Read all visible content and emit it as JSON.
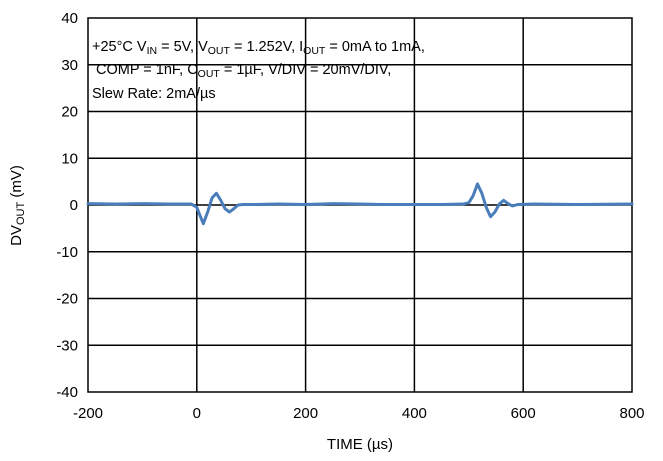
{
  "chart_data": {
    "type": "line",
    "title": "",
    "xlabel": "TIME (µs)",
    "ylabel": {
      "base": "DV",
      "sub": "OUT",
      "unit": " (mV)"
    },
    "xlim": [
      -200,
      800
    ],
    "ylim": [
      -40,
      40
    ],
    "x_ticks": [
      -200,
      0,
      200,
      400,
      600,
      800
    ],
    "y_ticks": [
      -40,
      -30,
      -20,
      -10,
      0,
      10,
      20,
      30,
      40
    ],
    "grid": true,
    "legend": "none",
    "annotation": {
      "line1": {
        "temp": "+25°C V",
        "vin_sub": "IN",
        "vin_val": " = 5V, V",
        "vout_sub": "OUT",
        "vout_val": " = 1.252V, I",
        "iout_sub": "OUT",
        "iout_val": " = 0mA to 1mA,"
      },
      "line2": {
        "comp": "COMP = 1nF, C",
        "cout_sub": "OUT",
        "cout_val": " = 1µF, V/DIV = 20mV/DIV,"
      },
      "line3": "Slew Rate: 2mA/µs"
    },
    "series": [
      {
        "color": "#4a7ebb",
        "x": [
          -200,
          -150,
          -100,
          -50,
          -10,
          0,
          5,
          12,
          20,
          28,
          36,
          44,
          52,
          60,
          68,
          76,
          85,
          100,
          150,
          200,
          250,
          300,
          350,
          400,
          450,
          490,
          500,
          508,
          516,
          524,
          532,
          540,
          548,
          556,
          564,
          572,
          580,
          590,
          620,
          700,
          800
        ],
        "y": [
          0.3,
          0.2,
          0.3,
          0.2,
          0.2,
          -0.5,
          -2.0,
          -4.0,
          -1.5,
          1.5,
          2.5,
          1.0,
          -0.8,
          -1.5,
          -0.8,
          0,
          0.1,
          0.1,
          0.2,
          0.1,
          0.3,
          0.2,
          0.1,
          0.1,
          0.1,
          0.2,
          0.5,
          2.0,
          4.5,
          2.5,
          -0.5,
          -2.5,
          -1.5,
          0.2,
          1.0,
          0.3,
          -0.2,
          0.1,
          0.2,
          0.1,
          0.2
        ]
      }
    ]
  }
}
